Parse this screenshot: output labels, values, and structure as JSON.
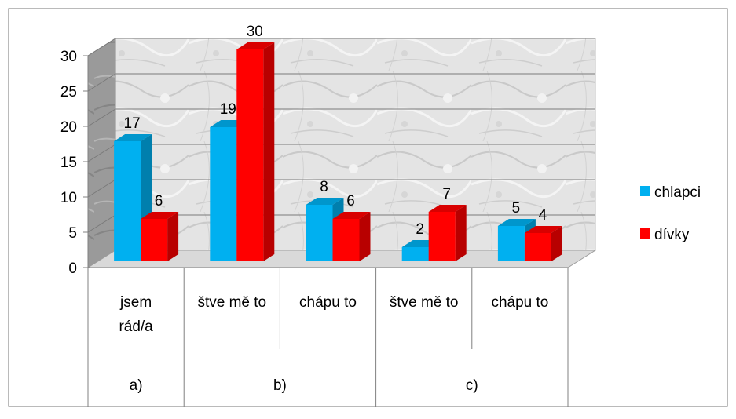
{
  "chart_data": {
    "type": "bar",
    "title": "",
    "xlabel": "",
    "ylabel": "",
    "ylim": [
      0,
      30
    ],
    "yticks": [
      0,
      5,
      10,
      15,
      20,
      25,
      30
    ],
    "grid": true,
    "style": "3d-clustered-column",
    "legend_position": "right",
    "categories": [
      "jsem\nrád/a",
      "štve mě to",
      "chápu to",
      "štve mě to",
      "chápu to"
    ],
    "groups": [
      {
        "label": "a)",
        "span": 1
      },
      {
        "label": "b)",
        "span": 2
      },
      {
        "label": "c)",
        "span": 2
      }
    ],
    "series": [
      {
        "name": "chlapci",
        "color": "#00b0f0",
        "values": [
          17,
          19,
          8,
          2,
          5
        ]
      },
      {
        "name": "dívky",
        "color": "#ff0000",
        "values": [
          6,
          30,
          6,
          7,
          4
        ]
      }
    ]
  }
}
